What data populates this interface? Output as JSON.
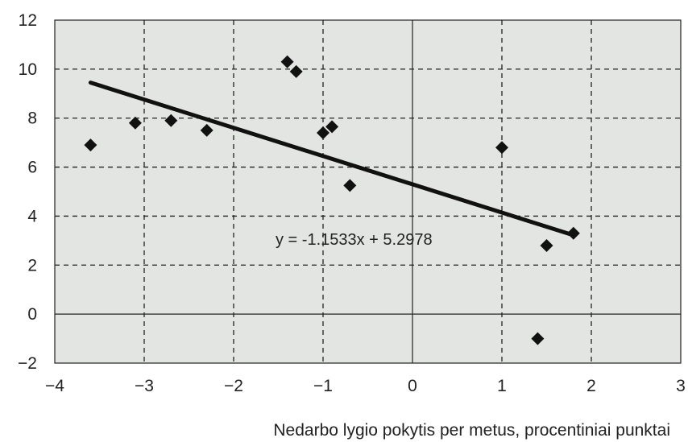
{
  "chart_data": {
    "type": "scatter",
    "title": "",
    "xlabel": "Nedarbo lygio pokytis per metus, procentiniai punktai",
    "ylabel": "",
    "xlim": [
      -4,
      3
    ],
    "ylim": [
      -2,
      12
    ],
    "xticks": [
      -4,
      -3,
      -2,
      -1,
      0,
      1,
      2,
      3
    ],
    "yticks": [
      -2,
      0,
      2,
      4,
      6,
      8,
      10,
      12
    ],
    "xtick_labels": [
      "−4",
      "−3",
      "−2",
      "−1",
      "0",
      "1",
      "2",
      "3"
    ],
    "ytick_labels": [
      "−2",
      "0",
      "2",
      "4",
      "6",
      "8",
      "10",
      "12"
    ],
    "grid": "dashed",
    "points": [
      {
        "x": -3.6,
        "y": 6.9
      },
      {
        "x": -3.1,
        "y": 7.8
      },
      {
        "x": -2.7,
        "y": 7.9
      },
      {
        "x": -2.3,
        "y": 7.5
      },
      {
        "x": -1.4,
        "y": 10.3
      },
      {
        "x": -1.3,
        "y": 9.9
      },
      {
        "x": -1.0,
        "y": 7.4
      },
      {
        "x": -0.9,
        "y": 7.65
      },
      {
        "x": -0.7,
        "y": 5.25
      },
      {
        "x": 1.0,
        "y": 6.8
      },
      {
        "x": 1.5,
        "y": 2.8
      },
      {
        "x": 1.8,
        "y": 3.3
      },
      {
        "x": 1.4,
        "y": -1.0
      }
    ],
    "trendline": {
      "slope": -1.1533,
      "intercept": 5.2978,
      "x_range": [
        -3.6,
        1.8
      ],
      "equation_label": "y = -1.1533x + 5.2978"
    }
  }
}
